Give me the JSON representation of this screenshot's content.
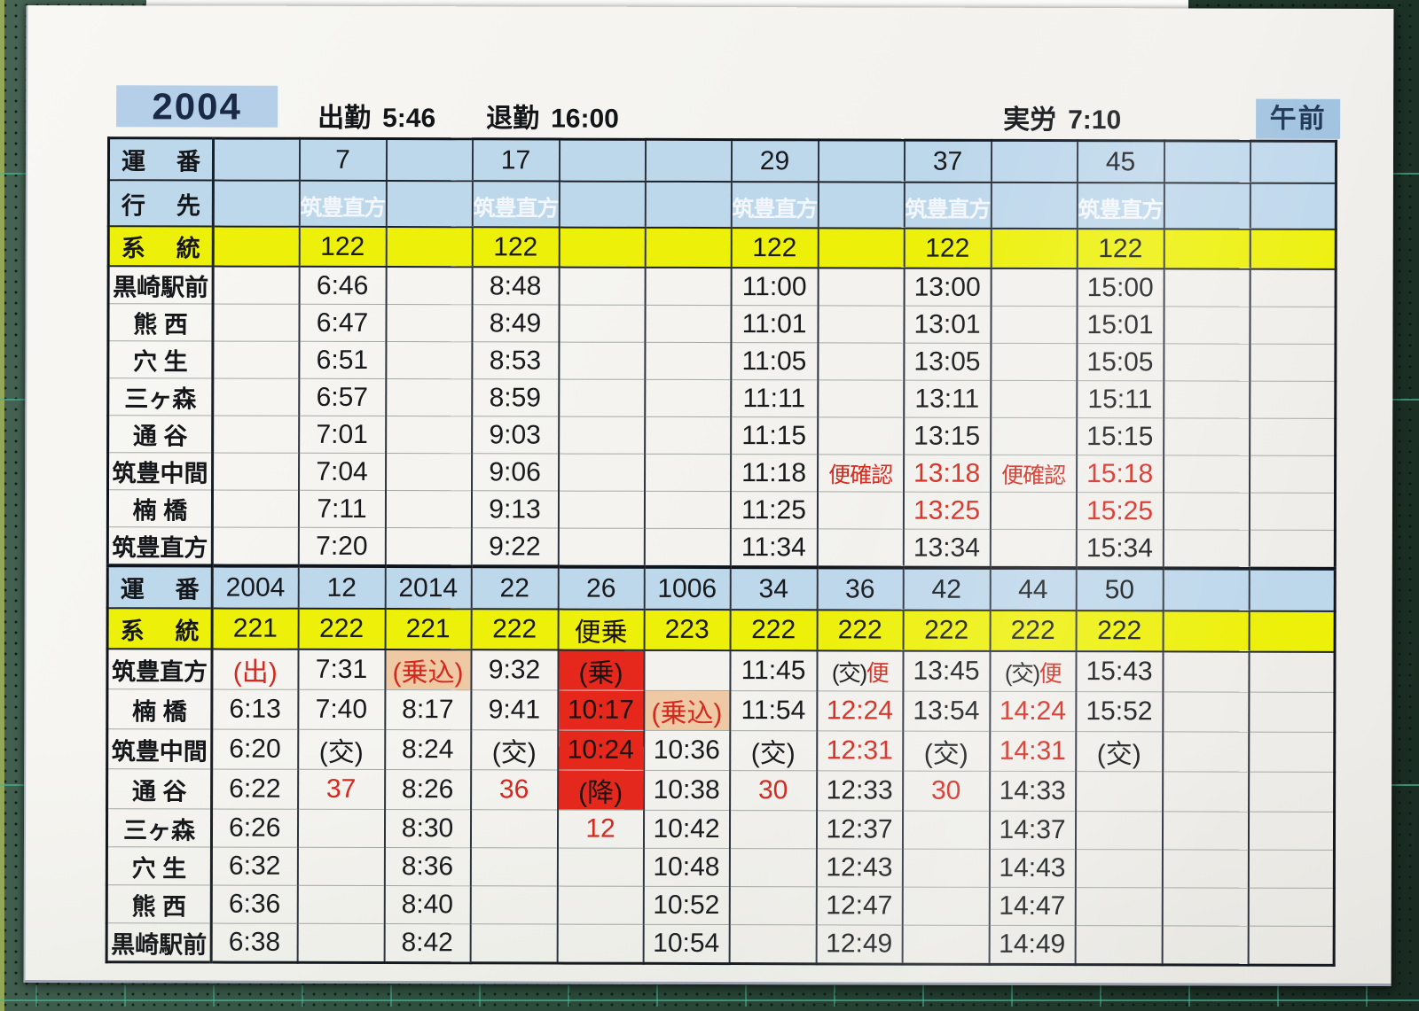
{
  "header": {
    "duty_number": "2004",
    "attendance_label": "出勤",
    "attendance_time": "5:46",
    "leave_label": "退勤",
    "leave_time": "16:00",
    "work_label": "実労",
    "work_time": "7:10",
    "period": "午前"
  },
  "colors": {
    "row_blue": "#bdd7eb",
    "row_yellow": "#edf008",
    "dest_navy": "#1e3a63",
    "red_text": "#d3291e",
    "red_cell": "#e6271c",
    "peach_cell": "#eec9a4",
    "badge_blue": "#b4cfe7"
  },
  "table": {
    "row_labels": {
      "unban": "運 番",
      "yukisaki": "行 先",
      "keito": "系 統"
    },
    "sections": [
      {
        "unban": [
          "",
          "7",
          "",
          "17",
          "",
          "",
          "29",
          "",
          "37",
          "",
          "45",
          "",
          ""
        ],
        "yukisaki": [
          "",
          "筑豊直方",
          "",
          "筑豊直方",
          "",
          "",
          "筑豊直方",
          "",
          "筑豊直方",
          "",
          "筑豊直方",
          "",
          ""
        ],
        "keito": [
          "",
          "122",
          "",
          "122",
          "",
          "",
          "122",
          "",
          "122",
          "",
          "122",
          "",
          ""
        ],
        "stations": [
          {
            "name": "黒崎駅前",
            "times": [
              "",
              "6:46",
              "",
              "8:48",
              "",
              "",
              "11:00",
              "",
              "13:00",
              "",
              "15:00",
              "",
              ""
            ]
          },
          {
            "name": "熊 西",
            "times": [
              "",
              "6:47",
              "",
              "8:49",
              "",
              "",
              "11:01",
              "",
              "13:01",
              "",
              "15:01",
              "",
              ""
            ]
          },
          {
            "name": "穴 生",
            "times": [
              "",
              "6:51",
              "",
              "8:53",
              "",
              "",
              "11:05",
              "",
              "13:05",
              "",
              "15:05",
              "",
              ""
            ]
          },
          {
            "name": "三ヶ森",
            "times": [
              "",
              "6:57",
              "",
              "8:59",
              "",
              "",
              "11:11",
              "",
              "13:11",
              "",
              "15:11",
              "",
              ""
            ]
          },
          {
            "name": "通 谷",
            "times": [
              "",
              "7:01",
              "",
              "9:03",
              "",
              "",
              "11:15",
              "",
              "13:15",
              "",
              "15:15",
              "",
              ""
            ]
          },
          {
            "name": "筑豊中間",
            "times": [
              "",
              "7:04",
              "",
              "9:06",
              "",
              "",
              "11:18",
              {
                "t": "便確認",
                "c": "red"
              },
              {
                "t": "13:18",
                "c": "red"
              },
              {
                "t": "便確認",
                "c": "red"
              },
              {
                "t": "15:18",
                "c": "red"
              },
              "",
              ""
            ]
          },
          {
            "name": "楠 橋",
            "times": [
              "",
              "7:11",
              "",
              "9:13",
              "",
              "",
              "11:25",
              "",
              {
                "t": "13:25",
                "c": "red"
              },
              "",
              {
                "t": "15:25",
                "c": "red"
              },
              "",
              ""
            ]
          },
          {
            "name": "筑豊直方",
            "times": [
              "",
              "7:20",
              "",
              "9:22",
              "",
              "",
              "11:34",
              "",
              "13:34",
              "",
              "15:34",
              "",
              ""
            ]
          }
        ]
      },
      {
        "unban": [
          "2004",
          "12",
          "2014",
          "22",
          "26",
          "1006",
          "34",
          "36",
          "42",
          "44",
          "50",
          "",
          ""
        ],
        "keito": [
          "221",
          "222",
          "221",
          "222",
          {
            "t": "便乗",
            "c": "redbg"
          },
          "223",
          "222",
          "222",
          "222",
          "222",
          "222",
          "",
          ""
        ],
        "stations": [
          {
            "name": "筑豊直方",
            "times": [
              {
                "t": "(出)",
                "c": "red"
              },
              "7:31",
              {
                "t": "(乗込)",
                "c": "peach"
              },
              "9:32",
              {
                "t": "(乗)",
                "c": "redbg"
              },
              "",
              "11:45",
              {
                "t": "(交)",
                "t2": "便",
                "c": "mixed"
              },
              "13:45",
              {
                "t": "(交)",
                "t2": "便",
                "c": "mixed"
              },
              "15:43",
              "",
              ""
            ]
          },
          {
            "name": "楠 橋",
            "times": [
              "6:13",
              "7:40",
              "8:17",
              "9:41",
              {
                "t": "10:17",
                "c": "redbg"
              },
              {
                "t": "(乗込)",
                "c": "peach"
              },
              "11:54",
              {
                "t": "12:24",
                "c": "red"
              },
              "13:54",
              {
                "t": "14:24",
                "c": "red"
              },
              "15:52",
              "",
              ""
            ]
          },
          {
            "name": "筑豊中間",
            "times": [
              "6:20",
              "(交)",
              "8:24",
              "(交)",
              {
                "t": "10:24",
                "c": "redbg"
              },
              "10:36",
              "(交)",
              {
                "t": "12:31",
                "c": "red"
              },
              "(交)",
              {
                "t": "14:31",
                "c": "red"
              },
              "(交)",
              "",
              ""
            ]
          },
          {
            "name": "通 谷",
            "times": [
              "6:22",
              {
                "t": "37",
                "c": "red"
              },
              "8:26",
              {
                "t": "36",
                "c": "red"
              },
              {
                "t": "(降)",
                "c": "redbg"
              },
              "10:38",
              {
                "t": "30",
                "c": "red"
              },
              "12:33",
              {
                "t": "30",
                "c": "red"
              },
              "14:33",
              "",
              "",
              ""
            ]
          },
          {
            "name": "三ヶ森",
            "times": [
              "6:26",
              "",
              "8:30",
              "",
              {
                "t": "12",
                "c": "red"
              },
              "10:42",
              "",
              "12:37",
              "",
              "14:37",
              "",
              "",
              ""
            ]
          },
          {
            "name": "穴 生",
            "times": [
              "6:32",
              "",
              "8:36",
              "",
              "",
              "10:48",
              "",
              "12:43",
              "",
              "14:43",
              "",
              "",
              ""
            ]
          },
          {
            "name": "熊 西",
            "times": [
              "6:36",
              "",
              "8:40",
              "",
              "",
              "10:52",
              "",
              "12:47",
              "",
              "14:47",
              "",
              "",
              ""
            ]
          },
          {
            "name": "黒崎駅前",
            "times": [
              "6:38",
              "",
              "8:42",
              "",
              "",
              "10:54",
              "",
              "12:49",
              "",
              "14:49",
              "",
              "",
              ""
            ]
          }
        ]
      }
    ]
  }
}
